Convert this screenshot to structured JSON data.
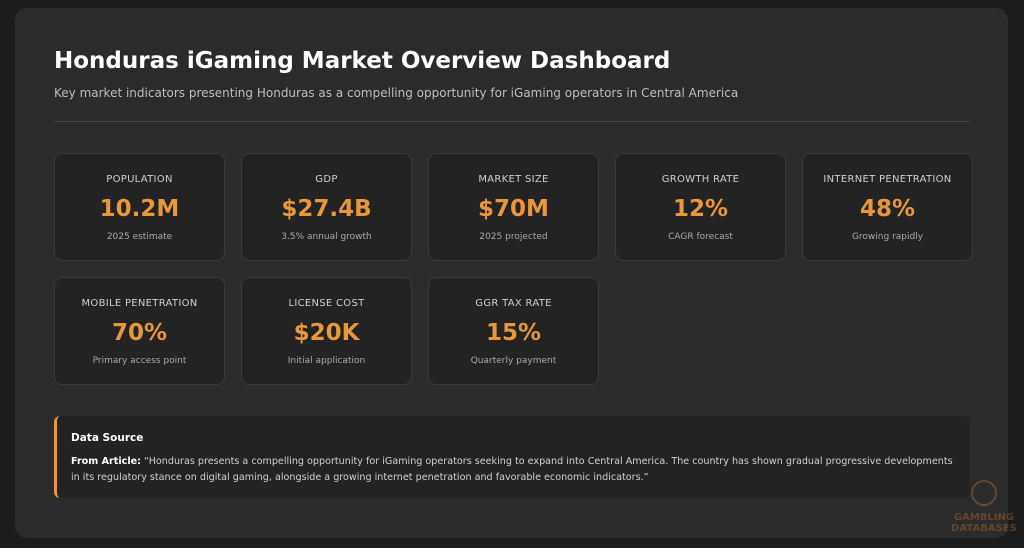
{
  "header": {
    "title": "Honduras iGaming Market Overview Dashboard",
    "subtitle": "Key market indicators presenting Honduras as a compelling opportunity for iGaming operators in Central America"
  },
  "cards": [
    {
      "label": "POPULATION",
      "value": "10.2M",
      "note": "2025 estimate"
    },
    {
      "label": "GDP",
      "value": "$27.4B",
      "note": "3.5% annual growth"
    },
    {
      "label": "MARKET SIZE",
      "value": "$70M",
      "note": "2025 projected"
    },
    {
      "label": "GROWTH RATE",
      "value": "12%",
      "note": "CAGR forecast"
    },
    {
      "label": "INTERNET PENETRATION",
      "value": "48%",
      "note": "Growing rapidly"
    },
    {
      "label": "MOBILE PENETRATION",
      "value": "70%",
      "note": "Primary access point"
    },
    {
      "label": "LICENSE COST",
      "value": "$20K",
      "note": "Initial application"
    },
    {
      "label": "GGR TAX RATE",
      "value": "15%",
      "note": "Quarterly payment"
    }
  ],
  "source": {
    "heading": "Data Source",
    "lead": "From Article:",
    "text": "“Honduras presents a compelling opportunity for iGaming operators seeking to expand into Central America. The country has shown gradual progressive developments in its regulatory stance on digital gaming, alongside a growing internet penetration and favorable economic indicators.”"
  },
  "watermark": [
    "GAMBLING",
    "DATABASES"
  ]
}
